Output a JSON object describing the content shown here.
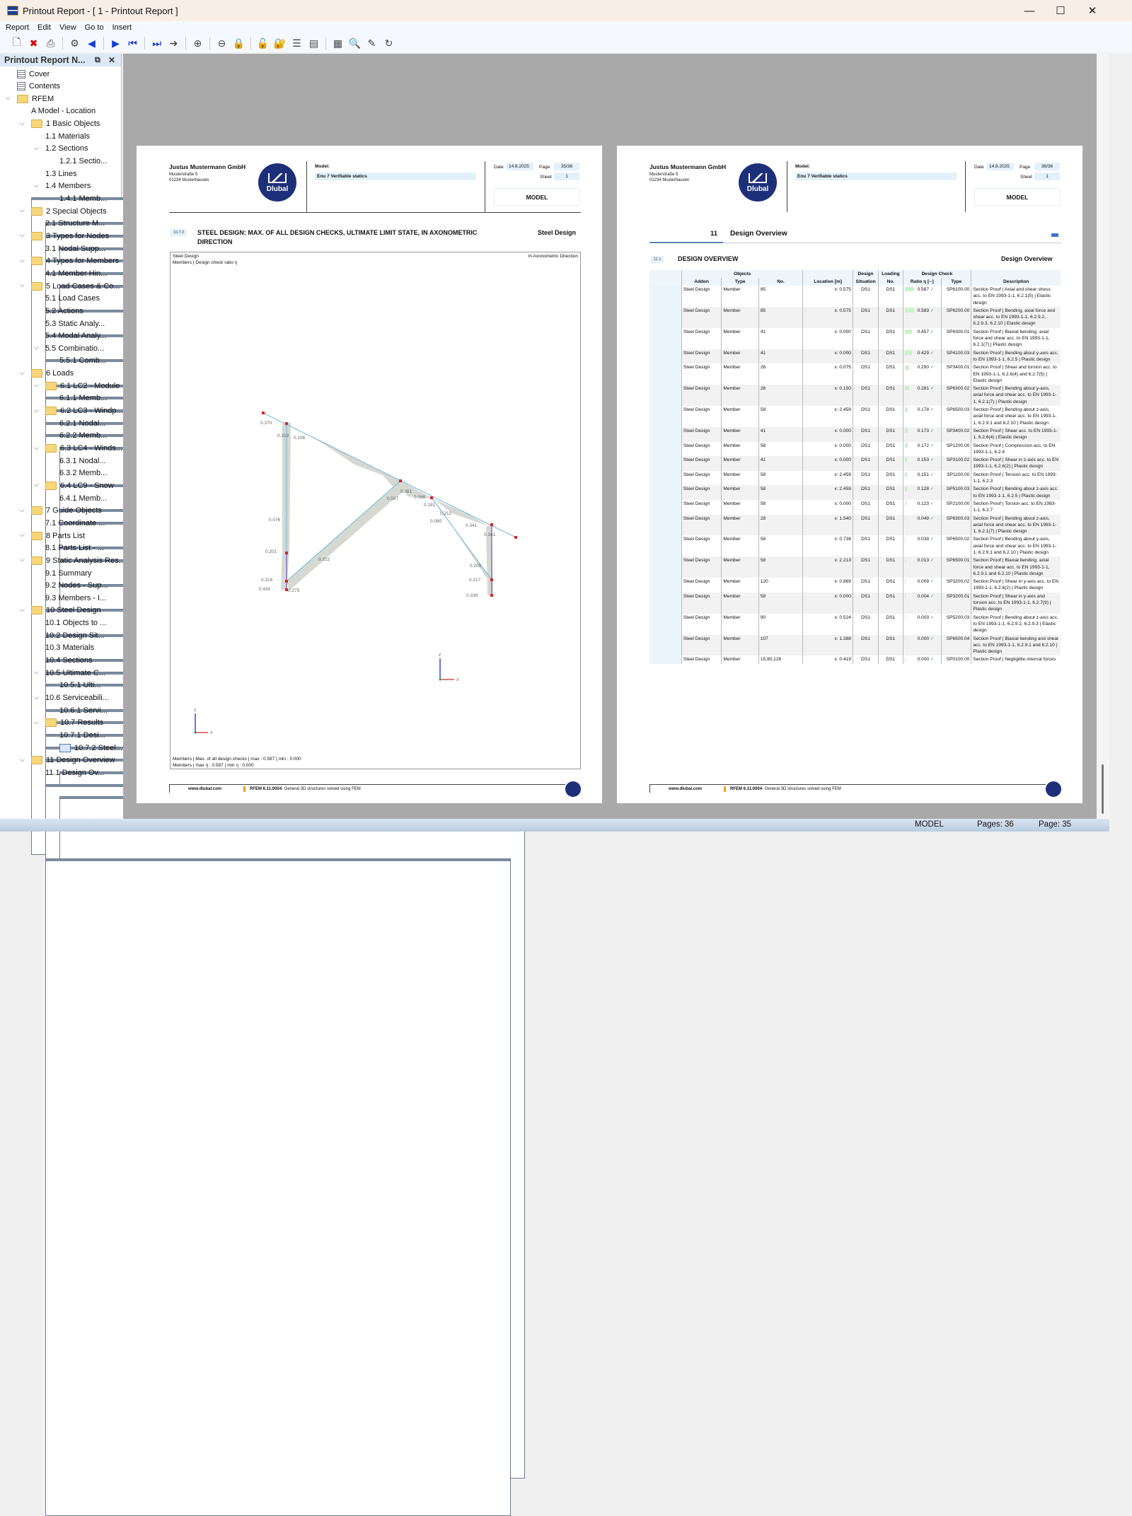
{
  "window": {
    "title": "Printout Report - [ 1 - Printout Report ]",
    "minimize": "—",
    "maximize": "☐",
    "close": "✕"
  },
  "menu": [
    "Report",
    "Edit",
    "View",
    "Go to",
    "Insert"
  ],
  "toolbar": [
    "open-icon",
    "close-report-icon",
    "print-icon",
    "print-settings-icon",
    "previous-page-icon",
    "next-page-icon",
    "first-page-icon",
    "last-page-icon",
    "go-to-page-icon",
    "zoom-in-icon",
    "zoom-out-icon",
    "lock-1-icon",
    "lock-2-icon",
    "lock-3-icon",
    "list-icon",
    "page-layout-icon",
    "header-icon",
    "find-icon",
    "edit-icon",
    "refresh-icon"
  ],
  "sidebar": {
    "title": "Printout Report N...",
    "items": [
      {
        "level": 0,
        "icon": "doc",
        "label": "Cover"
      },
      {
        "level": 0,
        "icon": "doc",
        "label": "Contents"
      },
      {
        "level": 0,
        "icon": "folder",
        "label": "RFEM",
        "expanded": true
      },
      {
        "level": 1,
        "icon": "page",
        "label": "A Model - Location"
      },
      {
        "level": 1,
        "icon": "folder",
        "label": "1 Basic Objects",
        "expanded": true
      },
      {
        "level": 2,
        "icon": "page",
        "label": "1.1 Materials"
      },
      {
        "level": 2,
        "icon": "page",
        "label": "1.2 Sections",
        "expanded": true
      },
      {
        "level": 3,
        "icon": "page",
        "label": "1.2.1 Sectio..."
      },
      {
        "level": 2,
        "icon": "page",
        "label": "1.3 Lines"
      },
      {
        "level": 2,
        "icon": "page",
        "label": "1.4 Members",
        "expanded": true
      },
      {
        "level": 3,
        "icon": "page",
        "label": "1.4.1 Memb..."
      },
      {
        "level": 1,
        "icon": "folder",
        "label": "2 Special Objects",
        "expanded": true
      },
      {
        "level": 2,
        "icon": "page",
        "label": "2.1 Structure M..."
      },
      {
        "level": 1,
        "icon": "folder",
        "label": "3 Types for Nodes",
        "expanded": true
      },
      {
        "level": 2,
        "icon": "page",
        "label": "3.1 Nodal Supp..."
      },
      {
        "level": 1,
        "icon": "folder",
        "label": "4 Types for Members",
        "expanded": true
      },
      {
        "level": 2,
        "icon": "page",
        "label": "4.1 Member Hin..."
      },
      {
        "level": 1,
        "icon": "folder",
        "label": "5 Load Cases & Co...",
        "expanded": true
      },
      {
        "level": 2,
        "icon": "page",
        "label": "5.1 Load Cases"
      },
      {
        "level": 2,
        "icon": "page",
        "label": "5.2 Actions"
      },
      {
        "level": 2,
        "icon": "page",
        "label": "5.3 Static Analy..."
      },
      {
        "level": 2,
        "icon": "page",
        "label": "5.4 Modal Analy..."
      },
      {
        "level": 2,
        "icon": "page",
        "label": "5.5 Combinatio...",
        "expanded": true
      },
      {
        "level": 3,
        "icon": "page",
        "label": "5.5.1 Comb..."
      },
      {
        "level": 1,
        "icon": "folder",
        "label": "6 Loads",
        "expanded": true
      },
      {
        "level": 2,
        "icon": "folder",
        "label": "6.1 LC2 - Module",
        "expanded": true
      },
      {
        "level": 3,
        "icon": "page",
        "label": "6.1.1 Memb..."
      },
      {
        "level": 2,
        "icon": "folder",
        "label": "6.2 LC3 - Windp...",
        "expanded": true
      },
      {
        "level": 3,
        "icon": "page",
        "label": "6.2.1 Nodal..."
      },
      {
        "level": 3,
        "icon": "page",
        "label": "6.2.2 Memb..."
      },
      {
        "level": 2,
        "icon": "folder",
        "label": "6.3 LC4 - Winds...",
        "expanded": true
      },
      {
        "level": 3,
        "icon": "page",
        "label": "6.3.1 Nodal..."
      },
      {
        "level": 3,
        "icon": "page",
        "label": "6.3.2 Memb..."
      },
      {
        "level": 2,
        "icon": "folder",
        "label": "6.4 LC9 - Snow",
        "expanded": true
      },
      {
        "level": 3,
        "icon": "page",
        "label": "6.4.1 Memb..."
      },
      {
        "level": 1,
        "icon": "folder",
        "label": "7 Guide Objects",
        "expanded": true
      },
      {
        "level": 2,
        "icon": "page",
        "label": "7.1 Coordinate ..."
      },
      {
        "level": 1,
        "icon": "folder",
        "label": "8 Parts List",
        "expanded": true
      },
      {
        "level": 2,
        "icon": "page",
        "label": "8.1 Parts List - ..."
      },
      {
        "level": 1,
        "icon": "folder",
        "label": "9 Static Analysis Res...",
        "expanded": true
      },
      {
        "level": 2,
        "icon": "page",
        "label": "9.1 Summary"
      },
      {
        "level": 2,
        "icon": "page",
        "label": "9.2 Nodes - Sup..."
      },
      {
        "level": 2,
        "icon": "page",
        "label": "9.3 Members - I..."
      },
      {
        "level": 1,
        "icon": "folder",
        "label": "10 Steel Design",
        "expanded": true
      },
      {
        "level": 2,
        "icon": "page",
        "label": "10.1 Objects to ..."
      },
      {
        "level": 2,
        "icon": "page",
        "label": "10.2 Design Sit..."
      },
      {
        "level": 2,
        "icon": "page",
        "label": "10.3 Materials"
      },
      {
        "level": 2,
        "icon": "page",
        "label": "10.4 Sections"
      },
      {
        "level": 2,
        "icon": "page",
        "label": "10.5 Ultimate C...",
        "expanded": true
      },
      {
        "level": 3,
        "icon": "page",
        "label": "10.5.1 Ulti..."
      },
      {
        "level": 2,
        "icon": "page",
        "label": "10.6 Serviceabili...",
        "expanded": true
      },
      {
        "level": 3,
        "icon": "page",
        "label": "10.6.1 Servi..."
      },
      {
        "level": 2,
        "icon": "folder",
        "label": "10.7 Results",
        "expanded": true
      },
      {
        "level": 3,
        "icon": "page",
        "label": "10.7.1 Desi..."
      },
      {
        "level": 3,
        "icon": "chart",
        "label": "10.7.2 Steel..."
      },
      {
        "level": 1,
        "icon": "folder",
        "label": "11 Design Overview",
        "expanded": true
      },
      {
        "level": 2,
        "icon": "page",
        "label": "11.1 Design Ov..."
      }
    ]
  },
  "header": {
    "company": "Justus Mustermann GmbH",
    "street": "Musterstraße 5",
    "city": "01234 Musterhausen",
    "logo_text": "Dlubal",
    "model_label": "Model:",
    "model_value": "Enu 7 Verifiable statics",
    "date_label": "Date",
    "date": "14.8.2025",
    "page_label": "Page",
    "sheet_label": "Sheet",
    "sheet": "1",
    "box": "MODEL"
  },
  "left_page": {
    "page": "35/36",
    "sec_num": "10.7.2",
    "sec_title": "STEEL DESIGN: MAX. OF ALL DESIGN CHECKS, ULTIMATE LIMIT STATE, IN AXONOMETRIC DIRECTION",
    "sec_right": "Steel Design",
    "fig_title1": "Steel Design",
    "fig_title2": "Members | Design check ratio η",
    "fig_direction": "In Axonometric Direction",
    "fig_labels": [
      "0.370",
      "0.319",
      "0.106",
      "0.076",
      "0.201",
      "0.316",
      "0.430",
      "0.275",
      "0.222",
      "0.587",
      "0.361",
      "0.086",
      "0.181",
      "0.212",
      "0.080",
      "0.341",
      "0.161",
      "0.205",
      "0.217",
      "0.339"
    ],
    "axis": {
      "z": "Z",
      "x": "X"
    },
    "caption1": "Members | Max. of all design checks | max : 0.587 | min : 0.000",
    "caption2": "Members | max η : 0.587 | min η : 0.000"
  },
  "right_page": {
    "page": "36/36",
    "chapter_num": "11",
    "chapter_title": "Design Overview",
    "sec_num": "11.1",
    "sec_title": "DESIGN OVERVIEW",
    "sec_right": "Design Overview",
    "table": {
      "group_headers": {
        "objects": "Objects",
        "design": "Design",
        "loading": "Loading",
        "design_check": "Design Check"
      },
      "headers": [
        "Addon",
        "Type",
        "No.",
        "Location [m]",
        "Situation",
        "No.",
        "Ratio η [--]",
        "Type",
        "Description"
      ],
      "rows": [
        [
          "Steel Design",
          "Member",
          "85",
          "x: 0.575",
          "DS1",
          "DS1",
          "0.587",
          "SP6100.00",
          "Section Proof | Axial and shear stress acc. to EN 1993-1-1, 6.2.1(5) | Elastic design"
        ],
        [
          "Steel Design",
          "Member",
          "85",
          "x: 0.575",
          "DS1",
          "DS1",
          "0.583",
          "SP6200.00",
          "Section Proof | Bending, axial force and shear acc. to EN 1993-1-1, 6.2.9.2, 6.2.9.3, 6.2.10 | Elastic design"
        ],
        [
          "Steel Design",
          "Member",
          "41",
          "x: 0.000",
          "DS1",
          "DS1",
          "0.457",
          "SP6300.01",
          "Section Proof | Biaxial bending, axial force and shear acc. to EN 1993-1-1, 6.2.1(7) | Plastic design"
        ],
        [
          "Steel Design",
          "Member",
          "41",
          "x: 0.000",
          "DS1",
          "DS1",
          "0.429",
          "SP4100.03",
          "Section Proof | Bending about y-axis acc. to EN 1993-1-1, 6.2.5 | Plastic design"
        ],
        [
          "Steel Design",
          "Member",
          "26",
          "x: 0.075",
          "DS1",
          "DS1",
          "0.290",
          "SP3400.01",
          "Section Proof | Shear and torsion acc. to EN 1993-1-1, 6.2.6(4) and 6.2.7(5) | Elastic design"
        ],
        [
          "Steel Design",
          "Member",
          "26",
          "x: 0.150",
          "DS1",
          "DS1",
          "0.281",
          "SP6300.02",
          "Section Proof | Bending about y-axis, axial force and shear acc. to EN 1993-1-1, 6.2.1(7) | Plastic design"
        ],
        [
          "Steel Design",
          "Member",
          "58",
          "x: 2.459",
          "DS1",
          "DS1",
          "0.178",
          "SP6500.03",
          "Section Proof | Bending about z-axis, axial force and shear acc. to EN 1993-1-1, 6.2.9.1 and 6.2.10 | Plastic design"
        ],
        [
          "Steel Design",
          "Member",
          "41",
          "x: 0.000",
          "DS1",
          "DS1",
          "0.173",
          "SP3400.02",
          "Section Proof | Shear acc. to EN 1993-1-1, 6.2.6(4) | Elastic design"
        ],
        [
          "Steel Design",
          "Member",
          "58",
          "x: 0.000",
          "DS1",
          "DS1",
          "0.172",
          "SP1200.00",
          "Section Proof | Compression acc. to EN 1993-1-1, 6.2.4"
        ],
        [
          "Steel Design",
          "Member",
          "41",
          "x: 0.000",
          "DS1",
          "DS1",
          "0.153",
          "SP3100.02",
          "Section Proof | Shear in z-axis acc. to EN 1993-1-1, 6.2.6(2) | Plastic design"
        ],
        [
          "Steel Design",
          "Member",
          "58",
          "x: 2.459",
          "DS1",
          "DS1",
          "0.151",
          "SP1100.00",
          "Section Proof | Tension acc. to EN 1993-1-1, 6.2.3"
        ],
        [
          "Steel Design",
          "Member",
          "58",
          "x: 2.459",
          "DS1",
          "DS1",
          "0.128",
          "SP5100.03",
          "Section Proof | Bending about z-axis acc. to EN 1993-1-1, 6.2.5 | Plastic design"
        ],
        [
          "Steel Design",
          "Member",
          "58",
          "x: 0.000",
          "DS1",
          "DS1",
          "0.123",
          "SP2100.00",
          "Section Proof | Torsion acc. to EN 1993-1-1, 6.2.7"
        ],
        [
          "Steel Design",
          "Member",
          "28",
          "x: 1.540",
          "DS1",
          "DS1",
          "0.049",
          "SP6300.03",
          "Section Proof | Bending about z-axis, axial force and shear acc. to EN 1993-1-1, 6.2.1(7) | Plastic design"
        ],
        [
          "Steel Design",
          "Member",
          "58",
          "x: 0.738",
          "DS1",
          "DS1",
          "0.039",
          "SP6500.02",
          "Section Proof | Bending about y-axis, axial force and shear acc. to EN 1993-1-1, 6.2.9.1 and 6.2.10 | Plastic design"
        ],
        [
          "Steel Design",
          "Member",
          "58",
          "x: 2.213",
          "DS1",
          "DS1",
          "0.013",
          "SP6500.01",
          "Section Proof | Biaxial bending, axial force and shear acc. to EN 1993-1-1, 6.2.9.1 and 6.2.10 | Plastic design"
        ],
        [
          "Steel Design",
          "Member",
          "120",
          "x: 0.869",
          "DS1",
          "DS1",
          "0.009",
          "SP3200.02",
          "Section Proof | Shear in y-axis acc. to EN 1993-1-1, 6.2.6(2) | Plastic design"
        ],
        [
          "Steel Design",
          "Member",
          "58",
          "x: 0.000",
          "DS1",
          "DS1",
          "0.004",
          "SP3200.01",
          "Section Proof | Shear in y-axis and torsion acc. to EN 1993-1-1, 6.2.7(9) | Plastic design"
        ],
        [
          "Steel Design",
          "Member",
          "90",
          "x: 0.524",
          "DS1",
          "DS1",
          "0.003",
          "SP5200.03",
          "Section Proof | Bending about z-axis acc. to EN 1993-1-1, 6.2.9.2, 6.2.9.3 | Elastic design"
        ],
        [
          "Steel Design",
          "Member",
          "107",
          "x: 1.388",
          "DS1",
          "DS1",
          "0.000",
          "SP6500.04",
          "Section Proof | Biaxial bending and shear acc. to EN 1993-1-1, 6.2.9.1 and 6.2.10 | Plastic design"
        ],
        [
          "Steel Design",
          "Member",
          "15,90,128",
          "x: 0.419",
          "DS1",
          "DS1",
          "0.000",
          "SP0100.00",
          "Section Proof | Negligible internal forces"
        ]
      ]
    }
  },
  "footer": {
    "url": "www.dlubal.com",
    "program": "RFEM 6.11.0004",
    "program_desc": " - General 3D structures solved using FEM"
  },
  "status": {
    "mode": "MODEL",
    "pages": "Pages: 36",
    "page": "Page: 35"
  },
  "colors": {
    "logo": "#1e2f7a",
    "ratio_bar": "#c8f2c8",
    "check": "#2a9b3a",
    "member_line": "#6fb8dc"
  }
}
